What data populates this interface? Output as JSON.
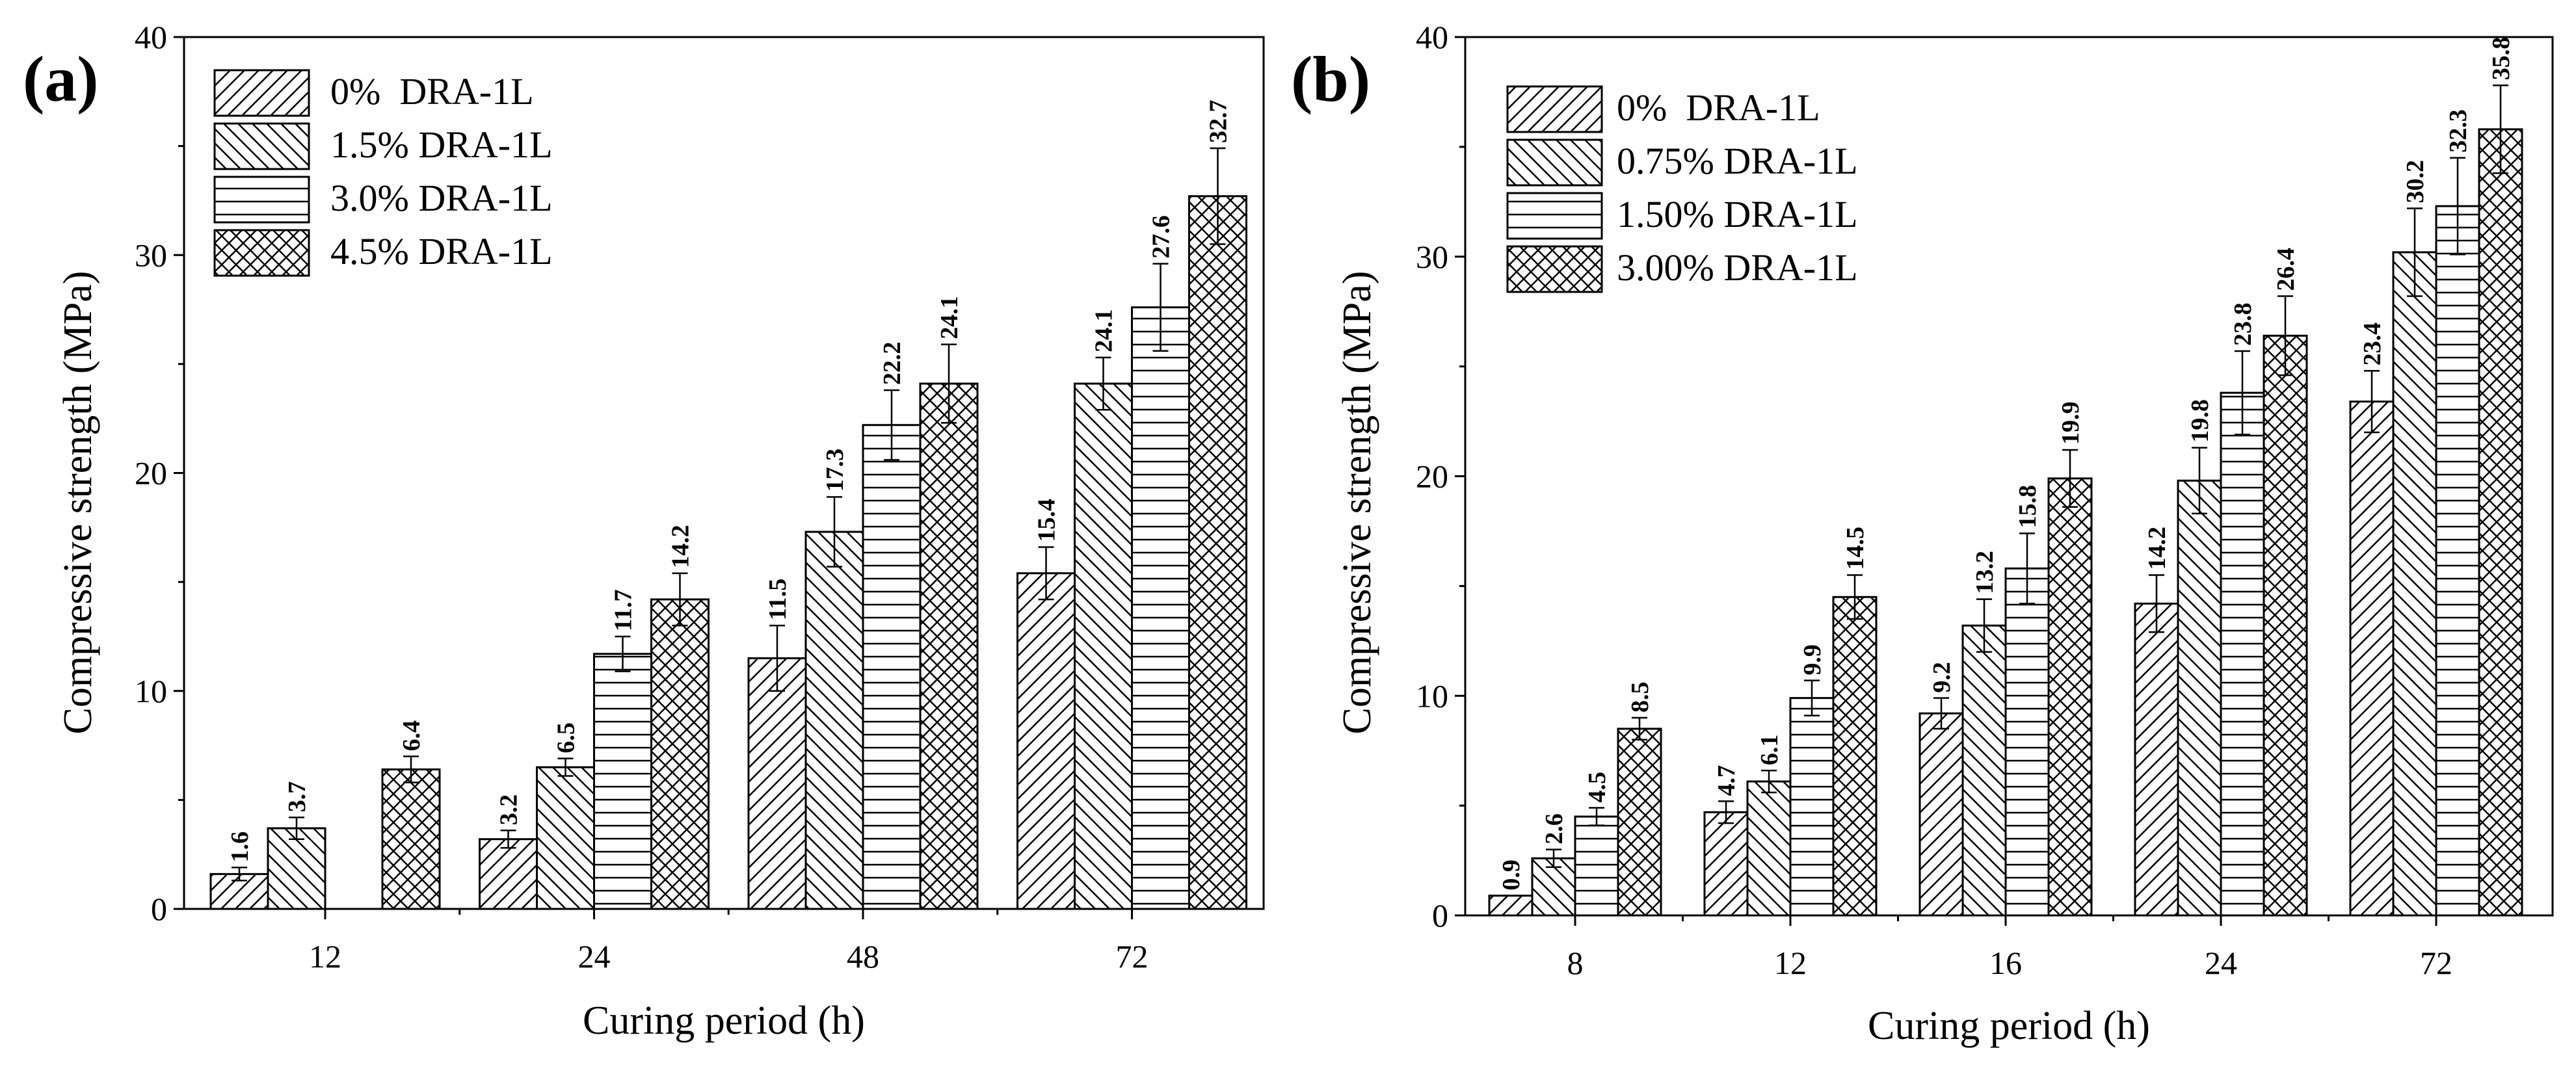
{
  "chart_data": [
    {
      "panel": "(a)",
      "type": "bar",
      "xlabel": "Curing period (h)",
      "ylabel": "Compressive strength (MPa)",
      "ylim": [
        0,
        40
      ],
      "yticks": [
        0,
        10,
        20,
        30,
        40
      ],
      "categories": [
        "12",
        "24",
        "48",
        "72"
      ],
      "legend_position": "top-left",
      "series": [
        {
          "name": "0%  DRA-1L",
          "pattern": "diag-up",
          "values": [
            1.6,
            3.2,
            11.5,
            15.4
          ],
          "errors": [
            0.3,
            0.4,
            1.5,
            1.2
          ]
        },
        {
          "name": "1.5% DRA-1L",
          "pattern": "diag-down",
          "values": [
            3.7,
            6.5,
            17.3,
            24.1
          ],
          "errors": [
            0.5,
            0.4,
            1.6,
            1.2
          ]
        },
        {
          "name": "3.0% DRA-1L",
          "pattern": "horiz",
          "values": [
            null,
            11.7,
            22.2,
            27.6
          ],
          "errors": [
            null,
            0.8,
            1.6,
            2.0
          ]
        },
        {
          "name": "4.5% DRA-1L",
          "pattern": "cross",
          "values": [
            6.4,
            14.2,
            24.1,
            32.7
          ],
          "errors": [
            0.6,
            1.2,
            1.8,
            2.2
          ]
        }
      ],
      "bar_labels": [
        [
          "1.6",
          "3.2",
          "11.5",
          "15.4"
        ],
        [
          "3.7",
          "6.5",
          "17.3",
          "24.1"
        ],
        [
          "",
          "11.7",
          "22.2",
          "27.6"
        ],
        [
          "6.4",
          "14.2",
          "24.1",
          "32.7"
        ]
      ]
    },
    {
      "panel": "(b)",
      "type": "bar",
      "xlabel": "Curing period (h)",
      "ylabel": "Compressive strength (MPa)",
      "ylim": [
        0,
        40
      ],
      "yticks": [
        0,
        10,
        20,
        30,
        40
      ],
      "categories": [
        "8",
        "12",
        "16",
        "24",
        "72"
      ],
      "legend_position": "top-left",
      "series": [
        {
          "name": "0%  DRA-1L",
          "pattern": "diag-up",
          "values": [
            0.9,
            4.7,
            9.2,
            14.2,
            23.4
          ],
          "errors": [
            0,
            0.5,
            0.7,
            1.3,
            1.4
          ]
        },
        {
          "name": "0.75% DRA-1L",
          "pattern": "diag-down",
          "values": [
            2.6,
            6.1,
            13.2,
            19.8,
            30.2
          ],
          "errors": [
            0.4,
            0.5,
            1.2,
            1.5,
            2.0
          ]
        },
        {
          "name": "1.50% DRA-1L",
          "pattern": "horiz",
          "values": [
            4.5,
            9.9,
            15.8,
            23.8,
            32.3
          ],
          "errors": [
            0.4,
            0.8,
            1.6,
            1.9,
            2.2
          ]
        },
        {
          "name": "3.00% DRA-1L",
          "pattern": "cross",
          "values": [
            8.5,
            14.5,
            19.9,
            26.4,
            35.8
          ],
          "errors": [
            0.5,
            1.0,
            1.3,
            1.8,
            2.0
          ]
        }
      ],
      "bar_labels": [
        [
          "0.9",
          "4.7",
          "9.2",
          "14.2",
          "23.4"
        ],
        [
          "2.6",
          "6.1",
          "13.2",
          "19.8",
          "30.2"
        ],
        [
          "4.5",
          "9.9",
          "15.8",
          "23.8",
          "32.3"
        ],
        [
          "8.5",
          "14.5",
          "19.9",
          "26.4",
          "35.8"
        ]
      ]
    }
  ]
}
